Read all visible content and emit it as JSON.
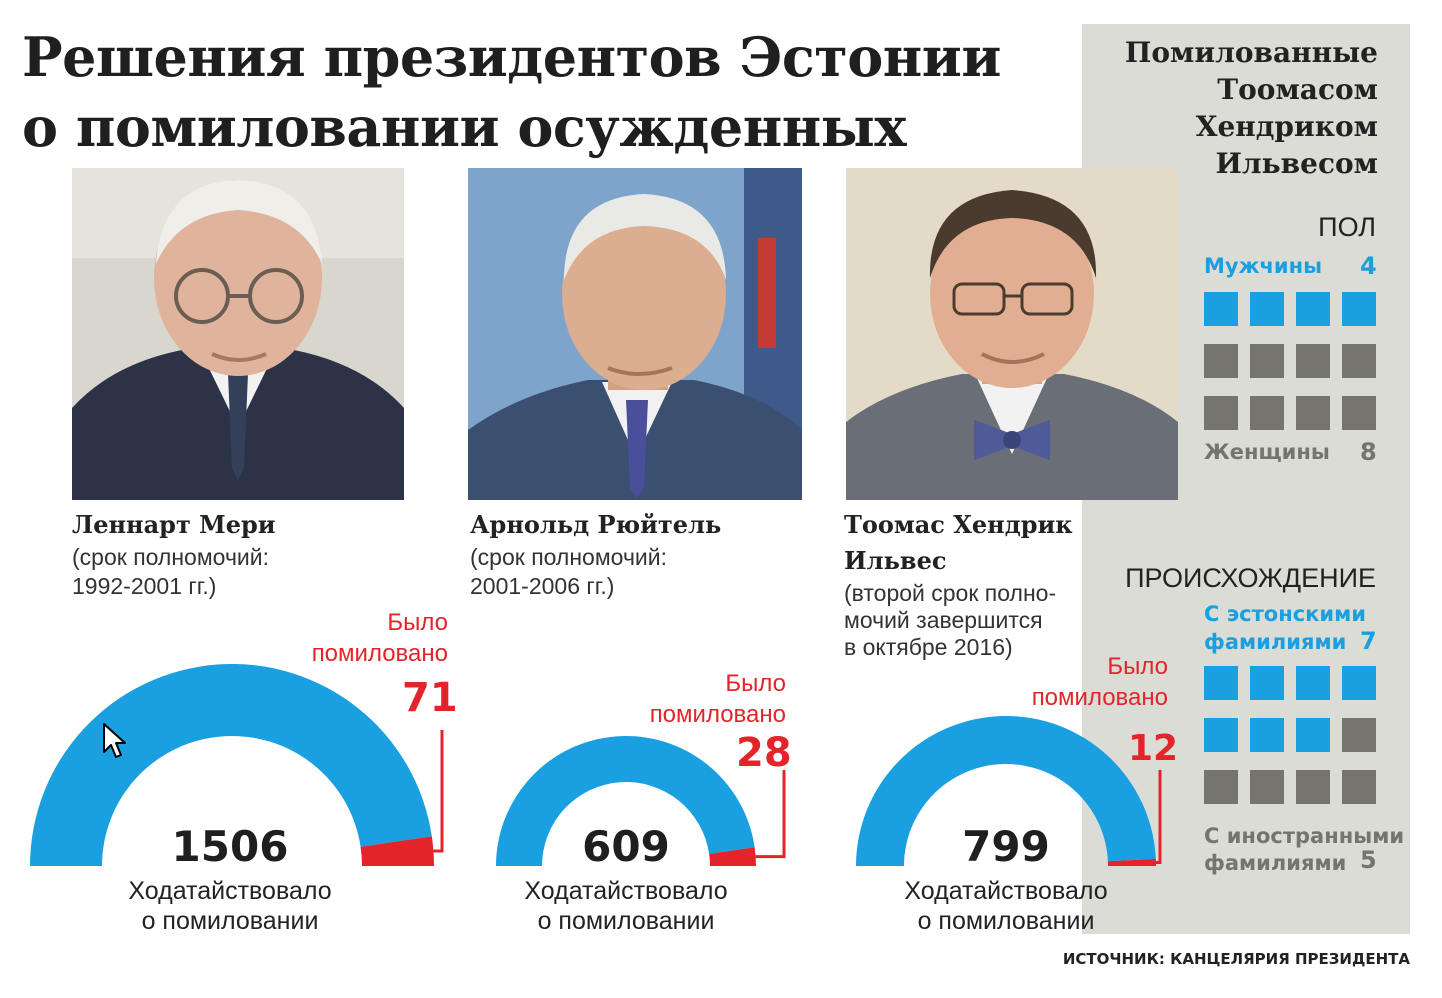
{
  "title_line1": "Решения президентов Эстонии",
  "title_line2": "о помиловании осужденных",
  "colors": {
    "accent_blue": "#1a9fe0",
    "pardon_red": "#e3252b",
    "grey_square": "#75756c",
    "panel_bg": "#dcdcd6"
  },
  "presidents": [
    {
      "name_line1": "Леннарт Мери",
      "name_line2": "",
      "term_line1": "(срок полномочий:",
      "term_line2": "1992-2001 гг.)",
      "term_line3": "",
      "pardon_label_line1": "Было",
      "pardon_label_line2": "помиловано",
      "pardoned": "71",
      "petitioned": "1506",
      "petition_label_line1": "Ходатайствовало",
      "petition_label_line2": "о помиловании"
    },
    {
      "name_line1": "Арнольд Рюйтель",
      "name_line2": "",
      "term_line1": "(срок полномочий:",
      "term_line2": "2001-2006 гг.)",
      "term_line3": "",
      "pardon_label_line1": "Было",
      "pardon_label_line2": "помиловано",
      "pardoned": "28",
      "petitioned": "609",
      "petition_label_line1": "Ходатайствовало",
      "petition_label_line2": "о помиловании"
    },
    {
      "name_line1": "Тоомас Хендрик",
      "name_line2": "Ильвес",
      "term_line1": "(второй срок полно-",
      "term_line2": "мочий завершится",
      "term_line3": "в октябре 2016)",
      "pardon_label_line1": "Было",
      "pardon_label_line2": "помиловано",
      "pardoned": "12",
      "petitioned": "799",
      "petition_label_line1": "Ходатайствовало",
      "petition_label_line2": "о помиловании"
    }
  ],
  "sidebar": {
    "title_line1": "Помилованные",
    "title_line2": "Тоомасом",
    "title_line3": "Хендриком",
    "title_line4": "Ильвесом",
    "gender_title": "ПОЛ",
    "men_label": "Мужчины",
    "men_count": "4",
    "women_label": "Женщины",
    "women_count": "8",
    "origin_title": "ПРОИСХОЖДЕНИЕ",
    "estonian_label_line1": "С эстонскими",
    "estonian_label_line2": "фамилиями",
    "estonian_count": "7",
    "foreign_label_line1": "С иностранными",
    "foreign_label_line2": "фамилиями",
    "foreign_count": "5"
  },
  "source": "ИСТОЧНИК: КАНЦЕЛЯРИЯ ПРЕЗИДЕНТА",
  "chart_data": [
    {
      "type": "pie",
      "title": "Леннарт Мери",
      "categories": [
        "Было помиловано",
        "Ходатайствовало о помиловании"
      ],
      "pardoned": 71,
      "petitioned": 1506
    },
    {
      "type": "pie",
      "title": "Арнольд Рюйтель",
      "categories": [
        "Было помиловано",
        "Ходатайствовало о помиловании"
      ],
      "pardoned": 28,
      "petitioned": 609
    },
    {
      "type": "pie",
      "title": "Тоомас Хендрик Ильвес",
      "categories": [
        "Было помиловано",
        "Ходатайствовало о помиловании"
      ],
      "pardoned": 12,
      "petitioned": 799
    },
    {
      "type": "table",
      "title": "ПОЛ",
      "categories": [
        "Мужчины",
        "Женщины"
      ],
      "values": [
        4,
        8
      ]
    },
    {
      "type": "table",
      "title": "ПРОИСХОЖДЕНИЕ",
      "categories": [
        "С эстонскими фамилиями",
        "С иностранными фамилиями"
      ],
      "values": [
        7,
        5
      ]
    }
  ]
}
